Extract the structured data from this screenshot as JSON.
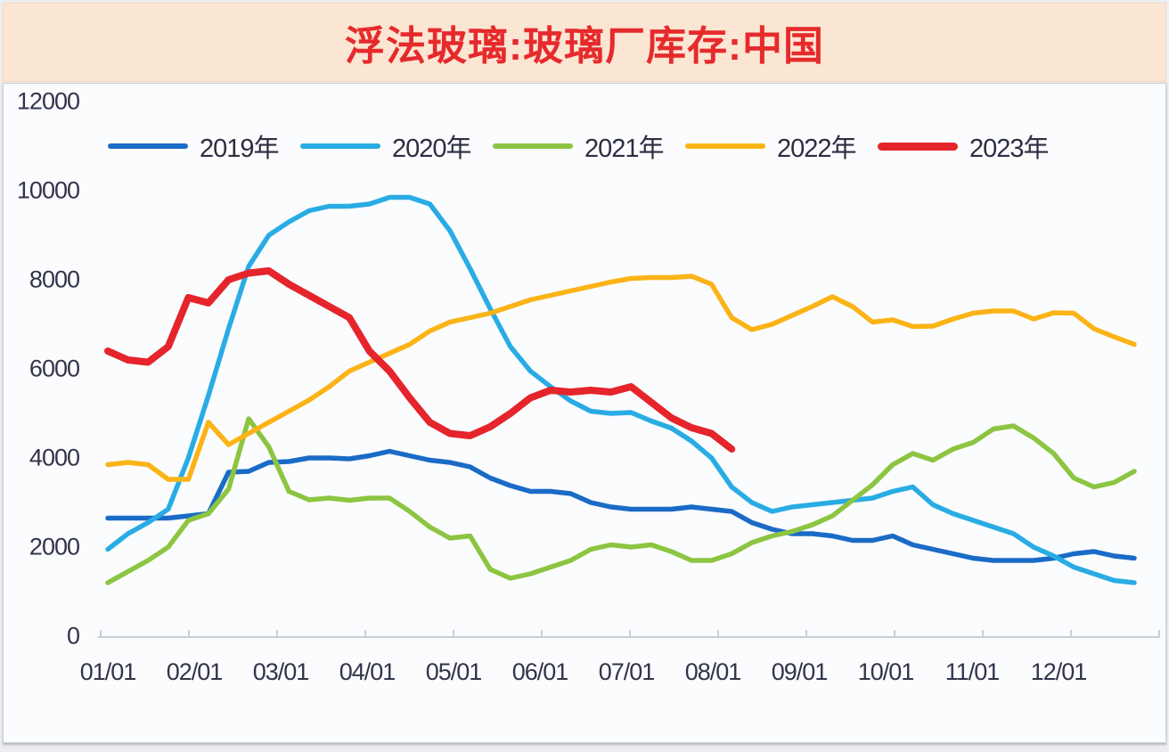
{
  "title": "浮法玻璃:玻璃厂库存:中国",
  "colors": {
    "title_text": "#e62a2c",
    "title_band_bg": "#fbe5d3",
    "card_bg": "#fbfcfe",
    "axis_line": "#c9ced6",
    "axis_text": "#33334a",
    "series_2019": "#1a6bc6",
    "series_2020": "#29ace4",
    "series_2021": "#8cc541",
    "series_2022": "#fbb316",
    "series_2023": "#e5242b"
  },
  "chart_data": {
    "type": "line",
    "title": "浮法玻璃:玻璃厂库存:中国",
    "xlabel": "",
    "ylabel": "",
    "ylim": [
      0,
      12000
    ],
    "y_ticks": [
      12000,
      10000,
      8000,
      6000,
      4000,
      2000,
      0
    ],
    "x_tick_labels": [
      "01/01",
      "02/01",
      "03/01",
      "04/01",
      "05/01",
      "06/01",
      "07/01",
      "08/01",
      "09/01",
      "10/01",
      "11/01",
      "12/01"
    ],
    "grid": false,
    "legend_position": "top",
    "x_unit": "week-of-year",
    "series": [
      {
        "name": "2019年",
        "color": "#1a6bc6",
        "width": 5.5,
        "values": [
          2650,
          2650,
          2650,
          2650,
          2700,
          2750,
          3680,
          3700,
          3900,
          3920,
          4000,
          4000,
          3980,
          4050,
          4150,
          4050,
          3950,
          3900,
          3800,
          3550,
          3380,
          3250,
          3250,
          3200,
          3000,
          2900,
          2850,
          2850,
          2850,
          2900,
          2850,
          2800,
          2550,
          2400,
          2300,
          2300,
          2250,
          2150,
          2150,
          2250,
          2050,
          1950,
          1850,
          1750,
          1700,
          1700,
          1700,
          1750,
          1850,
          1900,
          1800,
          1750
        ]
      },
      {
        "name": "2020年",
        "color": "#29ace4",
        "width": 5.5,
        "values": [
          1950,
          2300,
          2550,
          2850,
          4000,
          5400,
          6900,
          8300,
          9000,
          9300,
          9550,
          9650,
          9650,
          9700,
          9850,
          9850,
          9700,
          9100,
          8250,
          7350,
          6500,
          5950,
          5600,
          5280,
          5050,
          5000,
          5020,
          4830,
          4670,
          4380,
          4000,
          3350,
          3000,
          2800,
          2900,
          2950,
          3000,
          3050,
          3100,
          3250,
          3350,
          2950,
          2750,
          2600,
          2450,
          2300,
          2000,
          1800,
          1550,
          1400,
          1250,
          1200
        ]
      },
      {
        "name": "2021年",
        "color": "#8cc541",
        "width": 5.5,
        "values": [
          1200,
          1450,
          1700,
          2000,
          2600,
          2750,
          3300,
          4880,
          4250,
          3250,
          3060,
          3100,
          3050,
          3100,
          3100,
          2800,
          2450,
          2200,
          2250,
          1500,
          1300,
          1400,
          1550,
          1700,
          1950,
          2050,
          2000,
          2050,
          1900,
          1700,
          1700,
          1850,
          2100,
          2250,
          2350,
          2500,
          2700,
          3050,
          3400,
          3850,
          4100,
          3950,
          4200,
          4350,
          4650,
          4720,
          4450,
          4100,
          3550,
          3350,
          3450,
          3700
        ]
      },
      {
        "name": "2022年",
        "color": "#fbb316",
        "width": 5.5,
        "values": [
          3850,
          3900,
          3850,
          3520,
          3520,
          4800,
          4300,
          4550,
          4800,
          5050,
          5300,
          5600,
          5950,
          6150,
          6350,
          6550,
          6850,
          7050,
          7150,
          7250,
          7400,
          7550,
          7650,
          7750,
          7850,
          7950,
          8030,
          8050,
          8050,
          8080,
          7900,
          7150,
          6880,
          7000,
          7200,
          7400,
          7620,
          7400,
          7050,
          7100,
          6950,
          6960,
          7120,
          7250,
          7300,
          7300,
          7120,
          7260,
          7250,
          6900,
          6720,
          6550
        ]
      },
      {
        "name": "2023年",
        "color": "#e5242b",
        "width": 8,
        "values": [
          6400,
          6200,
          6150,
          6500,
          7600,
          7480,
          8000,
          8150,
          8200,
          7900,
          7650,
          7400,
          7150,
          6400,
          5950,
          5350,
          4800,
          4550,
          4500,
          4700,
          5000,
          5350,
          5520,
          5480,
          5520,
          5480,
          5600,
          5250,
          4900,
          4680,
          4550,
          4200
        ]
      }
    ]
  },
  "legend": [
    {
      "label": "2019年",
      "color": "#1a6bc6",
      "thick": false
    },
    {
      "label": "2020年",
      "color": "#29ace4",
      "thick": false
    },
    {
      "label": "2021年",
      "color": "#8cc541",
      "thick": false
    },
    {
      "label": "2022年",
      "color": "#fbb316",
      "thick": false
    },
    {
      "label": "2023年",
      "color": "#e5242b",
      "thick": true
    }
  ]
}
